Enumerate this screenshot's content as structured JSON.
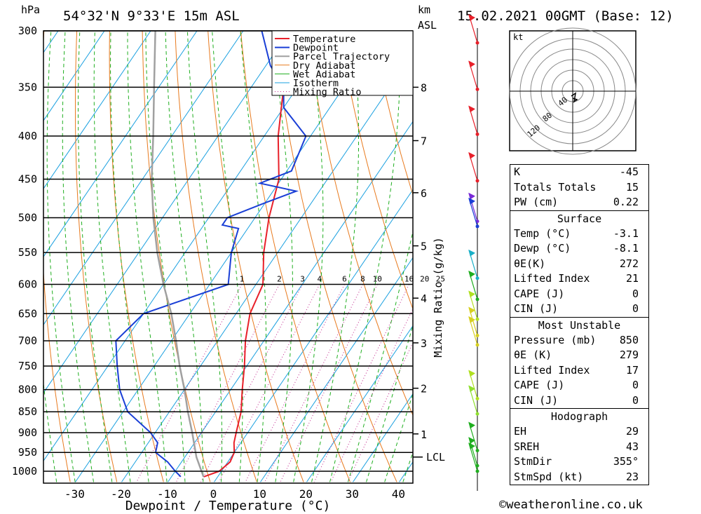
{
  "header": {
    "location": "54°32'N  9°33'E  15m  ASL",
    "datetime": "15.02.2021  00GMT  (Base: 12)",
    "pressure_unit": "hPa",
    "km_unit": "km",
    "asl_unit": "ASL"
  },
  "footer": {
    "copyright": "©weatheronline.co.uk"
  },
  "colors": {
    "temperature": "#e8202a",
    "dewpoint": "#1a3fd6",
    "parcel": "#a0a0a0",
    "dry_adiabat": "#e87a1e",
    "wet_adiabat": "#1fae1f",
    "isotherm": "#1aa0e0",
    "mixing_ratio": "#c0208a"
  },
  "chart_data": {
    "type": "line",
    "xlabel": "Dewpoint / Temperature (°C)",
    "ylabel": "hPa",
    "xlim": [
      -40,
      40
    ],
    "x_ticks": [
      -30,
      -20,
      -10,
      0,
      10,
      20,
      30,
      40
    ],
    "pressure_ticks": [
      300,
      350,
      400,
      450,
      500,
      550,
      600,
      650,
      700,
      750,
      800,
      850,
      900,
      950,
      1000
    ],
    "y_scale": "log",
    "skew": true,
    "km_ticks": [
      {
        "km": 8,
        "p": 350
      },
      {
        "km": 7,
        "p": 405
      },
      {
        "km": 6,
        "p": 467
      },
      {
        "km": 5,
        "p": 540
      },
      {
        "km": 4,
        "p": 623
      },
      {
        "km": 3,
        "p": 704
      },
      {
        "km": 2,
        "p": 797
      },
      {
        "km": 1,
        "p": 903
      }
    ],
    "lcl_label": "LCL",
    "lcl_pressure": 962,
    "mixing_ratio_label": "Mixing Ratio (g/kg)",
    "mixing_ratio_values": [
      "1",
      "2",
      "3",
      "4",
      "6",
      "8",
      "10",
      "16",
      "20",
      "25"
    ],
    "legend": [
      "Temperature",
      "Dewpoint",
      "Parcel Trajectory",
      "Dry Adiabat",
      "Wet Adiabat",
      "Isotherm",
      "Mixing Ratio"
    ],
    "series": [
      {
        "name": "Temperature",
        "points": [
          [
            1015,
            -3.0
          ],
          [
            1000,
            -0.5
          ],
          [
            975,
            0.5
          ],
          [
            950,
            0
          ],
          [
            925,
            -1.5
          ],
          [
            900,
            -2.5
          ],
          [
            850,
            -4.5
          ],
          [
            800,
            -7.5
          ],
          [
            750,
            -10.5
          ],
          [
            700,
            -14
          ],
          [
            650,
            -17
          ],
          [
            600,
            -18.5
          ],
          [
            550,
            -23
          ],
          [
            500,
            -27
          ],
          [
            450,
            -30.5
          ],
          [
            400,
            -37
          ],
          [
            350,
            -43
          ],
          [
            300,
            -51
          ]
        ]
      },
      {
        "name": "Dewpoint",
        "points": [
          [
            1015,
            -8.0
          ],
          [
            1000,
            -10
          ],
          [
            975,
            -13
          ],
          [
            950,
            -17
          ],
          [
            925,
            -18
          ],
          [
            900,
            -21
          ],
          [
            850,
            -29
          ],
          [
            800,
            -34
          ],
          [
            750,
            -38
          ],
          [
            700,
            -42
          ],
          [
            650,
            -40
          ],
          [
            600,
            -26
          ],
          [
            550,
            -30
          ],
          [
            515,
            -32
          ],
          [
            510,
            -36
          ],
          [
            500,
            -36
          ],
          [
            480,
            -30
          ],
          [
            465,
            -25
          ],
          [
            455,
            -34
          ],
          [
            440,
            -29
          ],
          [
            400,
            -31
          ],
          [
            370,
            -40
          ],
          [
            350,
            -43
          ],
          [
            330,
            -49
          ],
          [
            300,
            -56
          ]
        ]
      },
      {
        "name": "Parcel Trajectory",
        "points": [
          [
            1015,
            -3.1
          ],
          [
            962,
            -7.5
          ],
          [
            900,
            -12
          ],
          [
            850,
            -16
          ],
          [
            800,
            -20
          ],
          [
            750,
            -24.5
          ],
          [
            700,
            -29
          ],
          [
            650,
            -34
          ],
          [
            600,
            -40
          ],
          [
            550,
            -46
          ],
          [
            500,
            -52
          ],
          [
            450,
            -58
          ],
          [
            400,
            -64
          ],
          [
            350,
            -71
          ],
          [
            300,
            -79
          ]
        ]
      }
    ]
  },
  "hodograph": {
    "unit": "kt",
    "rings": [
      "40",
      "80",
      "120"
    ]
  },
  "indices": {
    "basic": [
      {
        "label": "K",
        "value": "-45"
      },
      {
        "label": "Totals Totals",
        "value": "15"
      },
      {
        "label": "PW (cm)",
        "value": "0.22"
      }
    ],
    "surface": {
      "title": "Surface",
      "rows": [
        {
          "label": "Temp (°C)",
          "value": "-3.1"
        },
        {
          "label": "Dewp (°C)",
          "value": "-8.1"
        },
        {
          "label": "θE(K)",
          "value": "272"
        },
        {
          "label": "Lifted Index",
          "value": "21"
        },
        {
          "label": "CAPE (J)",
          "value": "0"
        },
        {
          "label": "CIN (J)",
          "value": "0"
        }
      ]
    },
    "most_unstable": {
      "title": "Most Unstable",
      "rows": [
        {
          "label": "Pressure (mb)",
          "value": "850"
        },
        {
          "label": "θE (K)",
          "value": "279"
        },
        {
          "label": "Lifted Index",
          "value": "17"
        },
        {
          "label": "CAPE (J)",
          "value": "0"
        },
        {
          "label": "CIN (J)",
          "value": "0"
        }
      ]
    },
    "hodograph": {
      "title": "Hodograph",
      "rows": [
        {
          "label": "EH",
          "value": "29"
        },
        {
          "label": "SREH",
          "value": "43"
        },
        {
          "label": "StmDir",
          "value": "355°"
        },
        {
          "label": "StmSpd (kt)",
          "value": "23"
        }
      ]
    }
  }
}
